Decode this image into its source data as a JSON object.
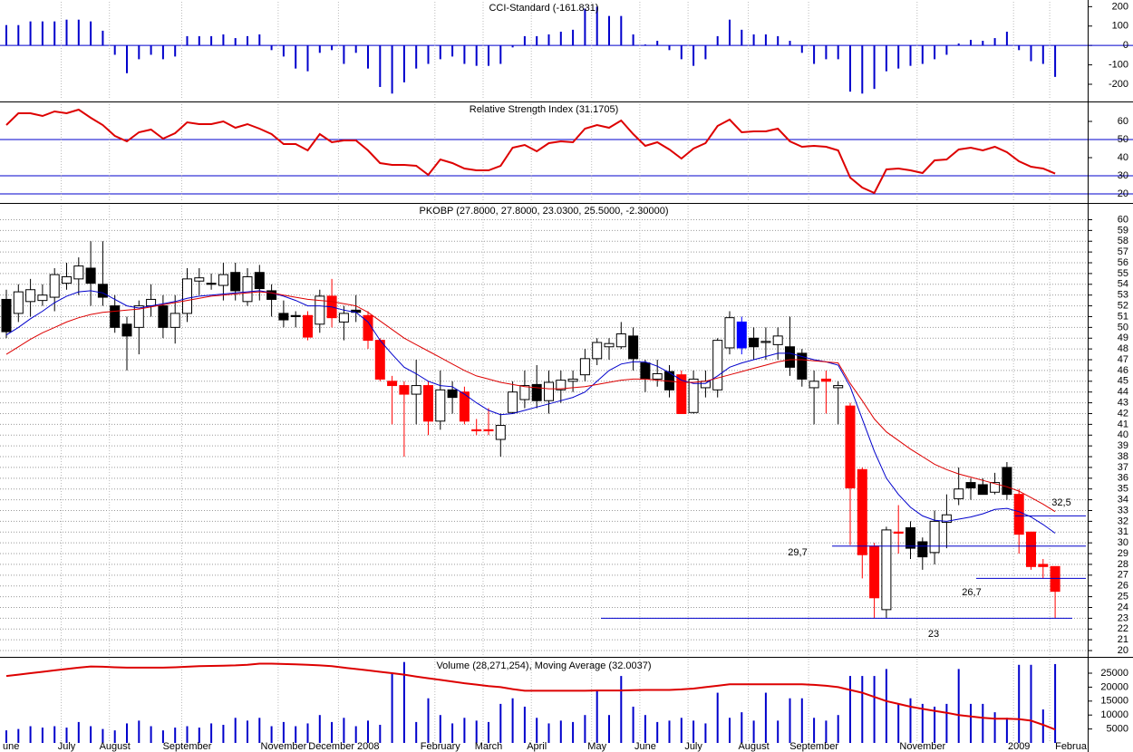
{
  "chart_data": [
    {
      "type": "bar",
      "title": "CCI-Standard (-161.831)",
      "color": "#0000cc",
      "zero_color": "#0000cc",
      "ylim": [
        -270,
        225
      ],
      "yticks": [
        -200,
        -100,
        0,
        100,
        200
      ],
      "values": [
        105,
        105,
        124,
        124,
        124,
        133,
        133,
        124,
        76,
        -48,
        -143,
        -71,
        -48,
        -71,
        -57,
        48,
        48,
        48,
        57,
        38,
        48,
        57,
        -24,
        -57,
        -119,
        -133,
        -38,
        -24,
        -95,
        -38,
        -119,
        -214,
        -248,
        -190,
        -119,
        -95,
        -71,
        -57,
        -95,
        -105,
        -105,
        -95,
        -10,
        48,
        48,
        57,
        71,
        81,
        190,
        200,
        152,
        152,
        57,
        5,
        24,
        -24,
        -71,
        -105,
        -71,
        48,
        133,
        81,
        57,
        57,
        48,
        24,
        -38,
        -95,
        -71,
        -71,
        -238,
        -248,
        -224,
        -133,
        -119,
        -105,
        -95,
        -71,
        -48,
        10,
        29,
        24,
        38,
        71,
        -24,
        -81,
        -95,
        -162
      ]
    },
    {
      "type": "line",
      "title": "Relative Strength Index (31.1705)",
      "color": "#dd0000",
      "level_color": "#0000cc",
      "ylim": [
        16.5,
        69.5
      ],
      "yticks": [
        20,
        30,
        40,
        50,
        60
      ],
      "levels": [
        50,
        30,
        20
      ],
      "values": [
        58,
        64.5,
        64.5,
        63,
        65.5,
        64.5,
        66.5,
        62,
        58,
        52,
        49,
        54,
        55.5,
        50.5,
        53.5,
        59.5,
        58.5,
        58.5,
        60,
        56.5,
        58.5,
        56,
        53,
        47.5,
        47.5,
        44,
        53,
        48.5,
        49.5,
        49.5,
        44,
        37,
        36,
        36,
        35.5,
        30.5,
        39,
        37,
        34,
        33,
        33,
        35.5,
        45.5,
        47,
        43.5,
        48,
        49,
        48.5,
        56,
        58,
        56.5,
        60.5,
        53,
        46.5,
        48.5,
        44.5,
        39.5,
        45,
        48,
        57.5,
        61,
        54,
        54.5,
        54.5,
        56,
        49,
        46,
        46.5,
        46,
        44,
        29,
        23.5,
        20.5,
        33.5,
        34,
        33,
        31.5,
        38.5,
        39,
        44.5,
        45.5,
        44,
        46,
        43,
        38,
        35,
        34,
        31.2
      ]
    },
    {
      "type": "candlestick",
      "title": "PKOBP (27.8000, 27.8000, 23.0300, 25.5000, -2.30000)",
      "grid": true,
      "level_color": "#0000cc",
      "label_color": "#0000cc",
      "ylim": [
        19.5,
        61.3
      ],
      "yticks": [
        20,
        21,
        22,
        23,
        24,
        25,
        26,
        27,
        28,
        29,
        30,
        31,
        32,
        33,
        34,
        35,
        36,
        37,
        38,
        39,
        40,
        41,
        42,
        43,
        44,
        45,
        46,
        47,
        48,
        49,
        50,
        51,
        52,
        53,
        54,
        55,
        56,
        57,
        58,
        59,
        60
      ],
      "open": [
        52.6,
        51.3,
        52.4,
        52.5,
        52.8,
        54.1,
        54.5,
        55.5,
        54,
        52,
        50.3,
        50,
        52,
        52,
        50,
        51.3,
        54.3,
        54.1,
        53.9,
        55.1,
        52.4,
        55.1,
        53.4,
        51.3,
        51.1,
        51.1,
        50.3,
        52.9,
        50.5,
        51.6,
        51.1,
        48.8,
        45,
        44.6,
        43.8,
        44.6,
        41.3,
        44.2,
        44,
        40.5,
        40.5,
        39.6,
        42.1,
        43.3,
        44.7,
        43.2,
        44.2,
        45,
        45.6,
        47.1,
        48.2,
        48.2,
        49.2,
        46.7,
        45.2,
        45.9,
        45.6,
        42.1,
        44.4,
        44.2,
        48.1,
        50.5,
        49,
        48.6,
        48.4,
        48.2,
        47.6,
        44.4,
        45.2,
        44.4,
        42.7,
        36.8,
        29.7,
        23.8,
        31,
        31.4,
        30.1,
        29.1,
        31.9,
        34.1,
        35.6,
        35.4,
        34.7,
        37,
        34.5,
        31,
        28,
        27.8
      ],
      "high": [
        53.5,
        54,
        54.5,
        54,
        55.5,
        56,
        56.5,
        58,
        58,
        53,
        51,
        52.5,
        54,
        53,
        53,
        55.5,
        55.5,
        55,
        56,
        56,
        55.5,
        55.8,
        54,
        52.5,
        51.5,
        51.5,
        53.5,
        54.5,
        52,
        53,
        51.5,
        49,
        45.5,
        45,
        47,
        45,
        46,
        45,
        44.5,
        41.5,
        42.5,
        42,
        45,
        46,
        46.5,
        46,
        46,
        46,
        48,
        49,
        49,
        50.5,
        50,
        47,
        47,
        46.5,
        46,
        46,
        46,
        49,
        51.5,
        51,
        50,
        50,
        50,
        51,
        48,
        46,
        46,
        45,
        43,
        37,
        30,
        31.5,
        33.5,
        32,
        30.5,
        33,
        34.5,
        37,
        36,
        36,
        36.5,
        37.5,
        35,
        31,
        28.5,
        27.8
      ],
      "low": [
        49,
        50.5,
        51,
        52,
        51.5,
        53.5,
        53,
        52,
        52,
        49.5,
        46,
        47.5,
        51,
        49,
        48.5,
        50.5,
        53,
        53.5,
        52.5,
        52.5,
        52,
        52.5,
        51,
        50,
        50,
        48.8,
        49.5,
        50,
        48.8,
        50.5,
        48,
        45,
        41,
        38,
        41,
        40,
        40.5,
        42,
        41,
        40,
        40,
        38,
        42,
        42.5,
        42.5,
        42,
        43,
        44,
        45,
        46.5,
        47,
        48,
        46,
        44,
        44.5,
        43.5,
        42,
        42,
        43.5,
        43.5,
        47.5,
        47.5,
        47,
        47,
        47,
        45.5,
        44.5,
        41,
        42,
        41,
        29.8,
        26.7,
        23,
        23,
        29,
        28.5,
        27.5,
        28,
        29.5,
        33.5,
        34,
        34.5,
        34.5,
        34,
        29,
        27.5,
        26.7,
        23.03
      ],
      "close": [
        49.6,
        53.3,
        53.5,
        53,
        54.9,
        54.7,
        55.7,
        54.1,
        52.8,
        50,
        49.2,
        52,
        52.6,
        50,
        51.3,
        54.5,
        54.6,
        54,
        54.9,
        53.4,
        54.7,
        53.6,
        52.6,
        50.7,
        51,
        49.1,
        52.9,
        50.9,
        51.3,
        51.4,
        48.8,
        45.2,
        44.6,
        43.8,
        44.6,
        41.3,
        44.2,
        43.5,
        41.3,
        40.4,
        40.4,
        40.9,
        44,
        44.6,
        43.2,
        44.9,
        45.1,
        45.2,
        47.1,
        48.6,
        48.5,
        49.4,
        47.1,
        45.2,
        45.7,
        44.2,
        42,
        45.2,
        45,
        48.8,
        50.9,
        48.1,
        48.2,
        48.7,
        49.2,
        46.3,
        45.2,
        45,
        45,
        44.6,
        35.1,
        28.9,
        24.9,
        31.2,
        30.9,
        29.5,
        28.7,
        32,
        32.6,
        35,
        35.1,
        34.5,
        35.6,
        34.5,
        30.8,
        27.8,
        27.8,
        25.5
      ],
      "colors": [
        "black",
        "white",
        "white",
        "white",
        "white",
        "white",
        "white",
        "black",
        "black",
        "black",
        "black",
        "white",
        "white",
        "black",
        "white",
        "white",
        "white",
        "black",
        "white",
        "black",
        "white",
        "black",
        "black",
        "black",
        "black",
        "red",
        "white",
        "red",
        "white",
        "black",
        "red",
        "red",
        "red",
        "red",
        "white",
        "red",
        "white",
        "black",
        "red",
        "red",
        "red",
        "white",
        "white",
        "white",
        "black",
        "white",
        "white",
        "white",
        "white",
        "white",
        "white",
        "white",
        "black",
        "black",
        "white",
        "black",
        "red",
        "white",
        "white",
        "white",
        "white",
        "blue",
        "black",
        "white",
        "white",
        "black",
        "black",
        "white",
        "red",
        "white",
        "red",
        "red",
        "red",
        "white",
        "red",
        "black",
        "black",
        "white",
        "white",
        "white",
        "black",
        "black",
        "white",
        "black",
        "red",
        "red",
        "red",
        "red"
      ],
      "overlays": [
        {
          "color": "#0000cc",
          "values": [
            49.3,
            50,
            50.8,
            51.5,
            52.3,
            52.9,
            53.3,
            53.4,
            53.2,
            52.6,
            52,
            51.8,
            52,
            52.2,
            52.4,
            52.7,
            52.9,
            53,
            53.1,
            53.2,
            53.3,
            53.4,
            53.2,
            52.9,
            52.5,
            52,
            52,
            51.9,
            51.6,
            51.4,
            50.5,
            48.8,
            47.5,
            46.3,
            45.7,
            45,
            44.6,
            44.5,
            43.8,
            43,
            42.3,
            41.9,
            42,
            42.3,
            42.6,
            42.9,
            43.2,
            43.5,
            44,
            45,
            46,
            46.6,
            46.8,
            46.8,
            46.4,
            45.8,
            45.1,
            44.8,
            44.8,
            45.5,
            46.3,
            46.7,
            47,
            47.3,
            47.6,
            47.6,
            47.3,
            47,
            46.8,
            46.5,
            44.5,
            41.5,
            38.5,
            36,
            34.5,
            33.3,
            32.5,
            32.1,
            32,
            32.2,
            32.4,
            32.7,
            33.1,
            33.2,
            32.9,
            32.4,
            31.7,
            30.9
          ]
        },
        {
          "color": "#dd0000",
          "values": [
            47.5,
            48.2,
            48.9,
            49.5,
            50,
            50.5,
            50.9,
            51.2,
            51.4,
            51.5,
            51.6,
            51.7,
            51.9,
            52.1,
            52.3,
            52.5,
            52.7,
            52.9,
            53,
            53.1,
            53.2,
            53.3,
            53.2,
            53,
            52.8,
            52.6,
            52.5,
            52.4,
            52.2,
            52,
            51.4,
            50.6,
            49.8,
            49,
            48.4,
            47.8,
            47.2,
            46.6,
            46,
            45.5,
            45.2,
            44.9,
            44.7,
            44.5,
            44.4,
            44.3,
            44.3,
            44.4,
            44.5,
            44.7,
            44.9,
            45.1,
            45.2,
            45.2,
            45.1,
            45,
            44.9,
            44.9,
            45,
            45.3,
            45.6,
            45.9,
            46.2,
            46.5,
            46.8,
            47,
            47,
            46.9,
            46.8,
            46.7,
            44.8,
            43.2,
            41.5,
            40.3,
            39.5,
            38.7,
            38,
            37.3,
            36.8,
            36.4,
            36.1,
            35.8,
            35.5,
            35.2,
            34.8,
            34.2,
            33.6,
            32.9
          ]
        }
      ],
      "levels": [
        {
          "value": 32.5,
          "label": "32,5"
        },
        {
          "value": 29.7,
          "label": "29,7"
        },
        {
          "value": 26.7,
          "label": "26,7"
        },
        {
          "value": 23,
          "label": "23"
        }
      ]
    },
    {
      "type": "bar",
      "title": "Volume (28,271,254), Moving Average (32.0037)",
      "color": "#0000cc",
      "ylim": [
        0,
        30200
      ],
      "yticks": [
        5000,
        10000,
        15000,
        20000,
        25000
      ],
      "values": [
        4500,
        5000,
        6000,
        5500,
        6000,
        5500,
        7500,
        6000,
        5000,
        4500,
        7000,
        8000,
        6000,
        4500,
        5500,
        6000,
        5500,
        7000,
        6500,
        9000,
        8000,
        9000,
        6000,
        7500,
        6000,
        7000,
        10000,
        7500,
        9000,
        6000,
        8000,
        6500,
        25000,
        29000,
        7500,
        16000,
        10000,
        7000,
        9000,
        8000,
        7500,
        14000,
        16000,
        13000,
        9000,
        7000,
        8000,
        7500,
        10000,
        19000,
        10000,
        24000,
        13000,
        10000,
        7500,
        8000,
        9000,
        8000,
        7000,
        18000,
        9000,
        11000,
        8000,
        18000,
        8000,
        16000,
        16000,
        9000,
        8000,
        10000,
        24000,
        24000,
        24000,
        26500,
        14000,
        16000,
        14000,
        13000,
        14000,
        26500,
        14000,
        14000,
        11000,
        9000,
        28000,
        28000,
        12000,
        28271
      ],
      "overlays": [
        {
          "color": "#dd0000",
          "values": [
            24000,
            24500,
            25000,
            25500,
            26000,
            26500,
            27000,
            27400,
            27300,
            27100,
            27000,
            27000,
            27000,
            27000,
            27100,
            27300,
            27500,
            27600,
            27700,
            27800,
            28000,
            28400,
            28400,
            28300,
            28200,
            28000,
            27800,
            27500,
            27000,
            26500,
            26000,
            25500,
            25000,
            24500,
            23800,
            23200,
            22600,
            22000,
            21400,
            20900,
            20400,
            20000,
            19300,
            18700,
            18700,
            18700,
            18700,
            18700,
            18700,
            18800,
            18800,
            18800,
            18900,
            19000,
            19000,
            19000,
            19200,
            19500,
            20000,
            20500,
            21000,
            21000,
            21000,
            21000,
            21000,
            21000,
            21000,
            20800,
            20500,
            20000,
            19000,
            18000,
            16500,
            15000,
            14000,
            13000,
            12200,
            11500,
            10800,
            10000,
            9500,
            9000,
            8700,
            8700,
            8500,
            8000,
            6500,
            4800
          ]
        }
      ],
      "categories": [
        "une",
        null,
        null,
        null,
        null,
        "July",
        null,
        null,
        null,
        "August",
        null,
        null,
        null,
        null,
        null,
        "September",
        null,
        null,
        null,
        null,
        null,
        null,
        null,
        "November",
        null,
        null,
        null,
        null,
        "December 2008",
        null,
        null,
        null,
        null,
        null,
        null,
        null,
        "February",
        null,
        null,
        null,
        "March",
        null,
        null,
        null,
        "April",
        null,
        null,
        null,
        null,
        "May",
        null,
        null,
        null,
        "June",
        null,
        null,
        null,
        "July",
        null,
        null,
        null,
        null,
        "August",
        null,
        null,
        null,
        null,
        "September",
        null,
        null,
        null,
        null,
        null,
        null,
        null,
        null,
        "November",
        null,
        null,
        null,
        null,
        null,
        null,
        null,
        "2009",
        null,
        null,
        "Februa"
      ]
    }
  ]
}
